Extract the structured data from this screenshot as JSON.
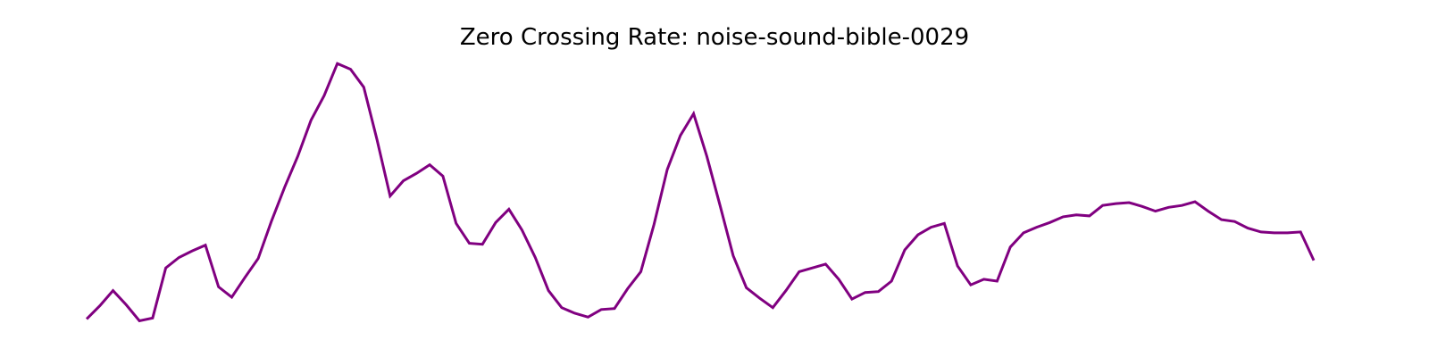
{
  "chart_data": {
    "type": "line",
    "title": "Zero Crossing Rate: noise-sound-bible-0029",
    "xlabel": "",
    "ylabel": "",
    "axes_visible": false,
    "grid": false,
    "legend": "none",
    "series": [
      {
        "color": "#800080",
        "values": [
          0.01,
          0.024,
          0.04,
          0.025,
          0.008,
          0.011,
          0.064,
          0.075,
          0.082,
          0.088,
          0.044,
          0.033,
          0.054,
          0.074,
          0.113,
          0.149,
          0.182,
          0.22,
          0.246,
          0.28,
          0.274,
          0.255,
          0.2,
          0.14,
          0.156,
          0.164,
          0.173,
          0.161,
          0.111,
          0.09,
          0.089,
          0.112,
          0.126,
          0.104,
          0.075,
          0.04,
          0.022,
          0.016,
          0.012,
          0.02,
          0.021,
          0.042,
          0.06,
          0.11,
          0.168,
          0.204,
          0.227,
          0.182,
          0.13,
          0.077,
          0.043,
          0.032,
          0.022,
          0.04,
          0.06,
          0.064,
          0.068,
          0.052,
          0.031,
          0.038,
          0.039,
          0.05,
          0.083,
          0.099,
          0.107,
          0.111,
          0.066,
          0.046,
          0.052,
          0.05,
          0.086,
          0.101,
          0.107,
          0.112,
          0.118,
          0.12,
          0.119,
          0.13,
          0.132,
          0.133,
          0.129,
          0.124,
          0.128,
          0.13,
          0.134,
          0.124,
          0.115,
          0.113,
          0.106,
          0.102,
          0.101,
          0.101,
          0.102,
          0.072
        ]
      }
    ]
  }
}
